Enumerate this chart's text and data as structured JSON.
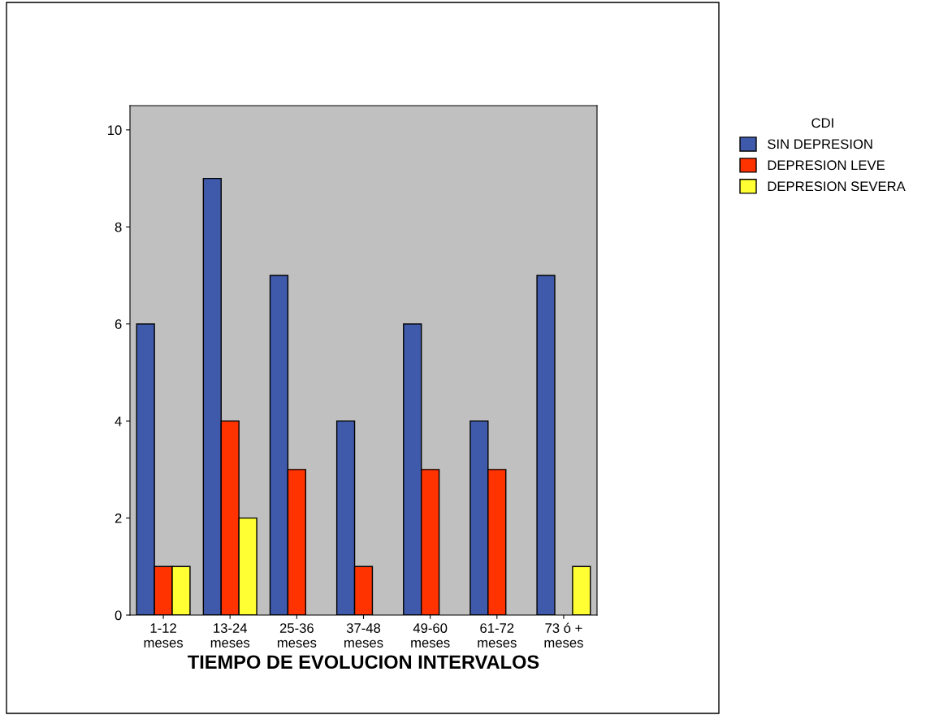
{
  "chart_data": {
    "type": "bar",
    "xlabel": "TIEMPO DE EVOLUCION INTERVALOS",
    "legend_title": "CDI",
    "categories": [
      "1-12\nmeses",
      "13-24\nmeses",
      "25-36\nmeses",
      "37-48\nmeses",
      "49-60\nmeses",
      "61-72\nmeses",
      "73 ó +\nmeses"
    ],
    "series": [
      {
        "name": "SIN DEPRESION",
        "color": "#3f5aab",
        "values": [
          6,
          9,
          7,
          4,
          6,
          4,
          7
        ]
      },
      {
        "name": "DEPRESION LEVE",
        "color": "#ff3300",
        "values": [
          1,
          4,
          3,
          1,
          3,
          3,
          null
        ]
      },
      {
        "name": "DEPRESION SEVERA",
        "color": "#ffff33",
        "values": [
          1,
          2,
          null,
          null,
          null,
          null,
          1
        ]
      }
    ],
    "ylim": [
      0,
      10.5
    ],
    "yticks": [
      0,
      2,
      4,
      6,
      8,
      10
    ],
    "grid": false,
    "legend": "top right"
  }
}
